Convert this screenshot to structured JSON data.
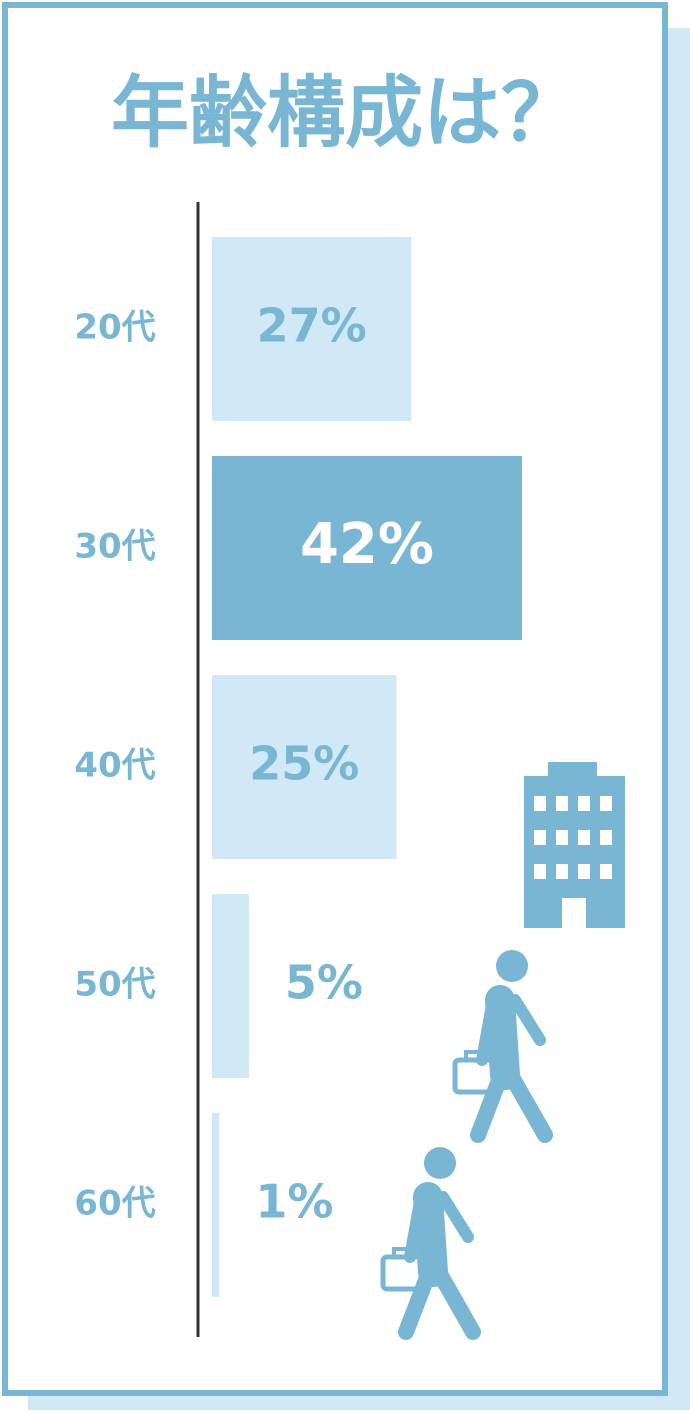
{
  "chart_data": {
    "type": "bar",
    "orientation": "horizontal",
    "title": "年齢構成は？",
    "categories": [
      "20代",
      "30代",
      "40代",
      "50代",
      "60代"
    ],
    "values": [
      27,
      42,
      25,
      5,
      1
    ],
    "value_labels": [
      "27%",
      "42%",
      "25%",
      "5%",
      "1%"
    ],
    "colors": [
      "#d1e8f6",
      "#78b6d3",
      "#d1e8f6",
      "#d1e8f6",
      "#d1e8f6"
    ]
  }
}
